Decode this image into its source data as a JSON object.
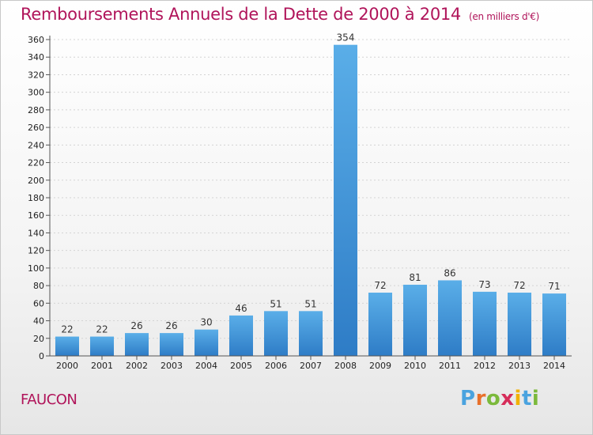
{
  "title": "Remboursements Annuels de la Dette de 2000 à 2014",
  "subtitle": "(en milliers d'€)",
  "commune": "FAUCON",
  "logo": {
    "text": "Proxiti",
    "letters": [
      {
        "ch": "P",
        "color": "#4aa3df"
      },
      {
        "ch": "r",
        "color": "#e8702a"
      },
      {
        "ch": "o",
        "color": "#7bb93b"
      },
      {
        "ch": "x",
        "color": "#d62d5a"
      },
      {
        "ch": "i",
        "color": "#f2b100"
      },
      {
        "ch": "t",
        "color": "#4aa3df"
      },
      {
        "ch": "i",
        "color": "#7bb93b"
      }
    ]
  },
  "colors": {
    "title": "#b0145a",
    "bar_top": "#5aaee8",
    "bar_bottom": "#2e7cc6",
    "grid": "#d4d4d4",
    "axis": "#555555"
  },
  "chart_data": {
    "type": "bar",
    "categories": [
      "2000",
      "2001",
      "2002",
      "2003",
      "2004",
      "2005",
      "2006",
      "2007",
      "2008",
      "2009",
      "2010",
      "2011",
      "2012",
      "2013",
      "2014"
    ],
    "values": [
      22,
      22,
      26,
      26,
      30,
      46,
      51,
      51,
      354,
      72,
      81,
      86,
      73,
      72,
      71
    ],
    "ylim": [
      0,
      360
    ],
    "yticks": [
      0,
      20,
      40,
      60,
      80,
      100,
      120,
      140,
      160,
      180,
      200,
      220,
      240,
      260,
      280,
      300,
      320,
      340,
      360
    ],
    "grid": true,
    "legend": "none"
  }
}
